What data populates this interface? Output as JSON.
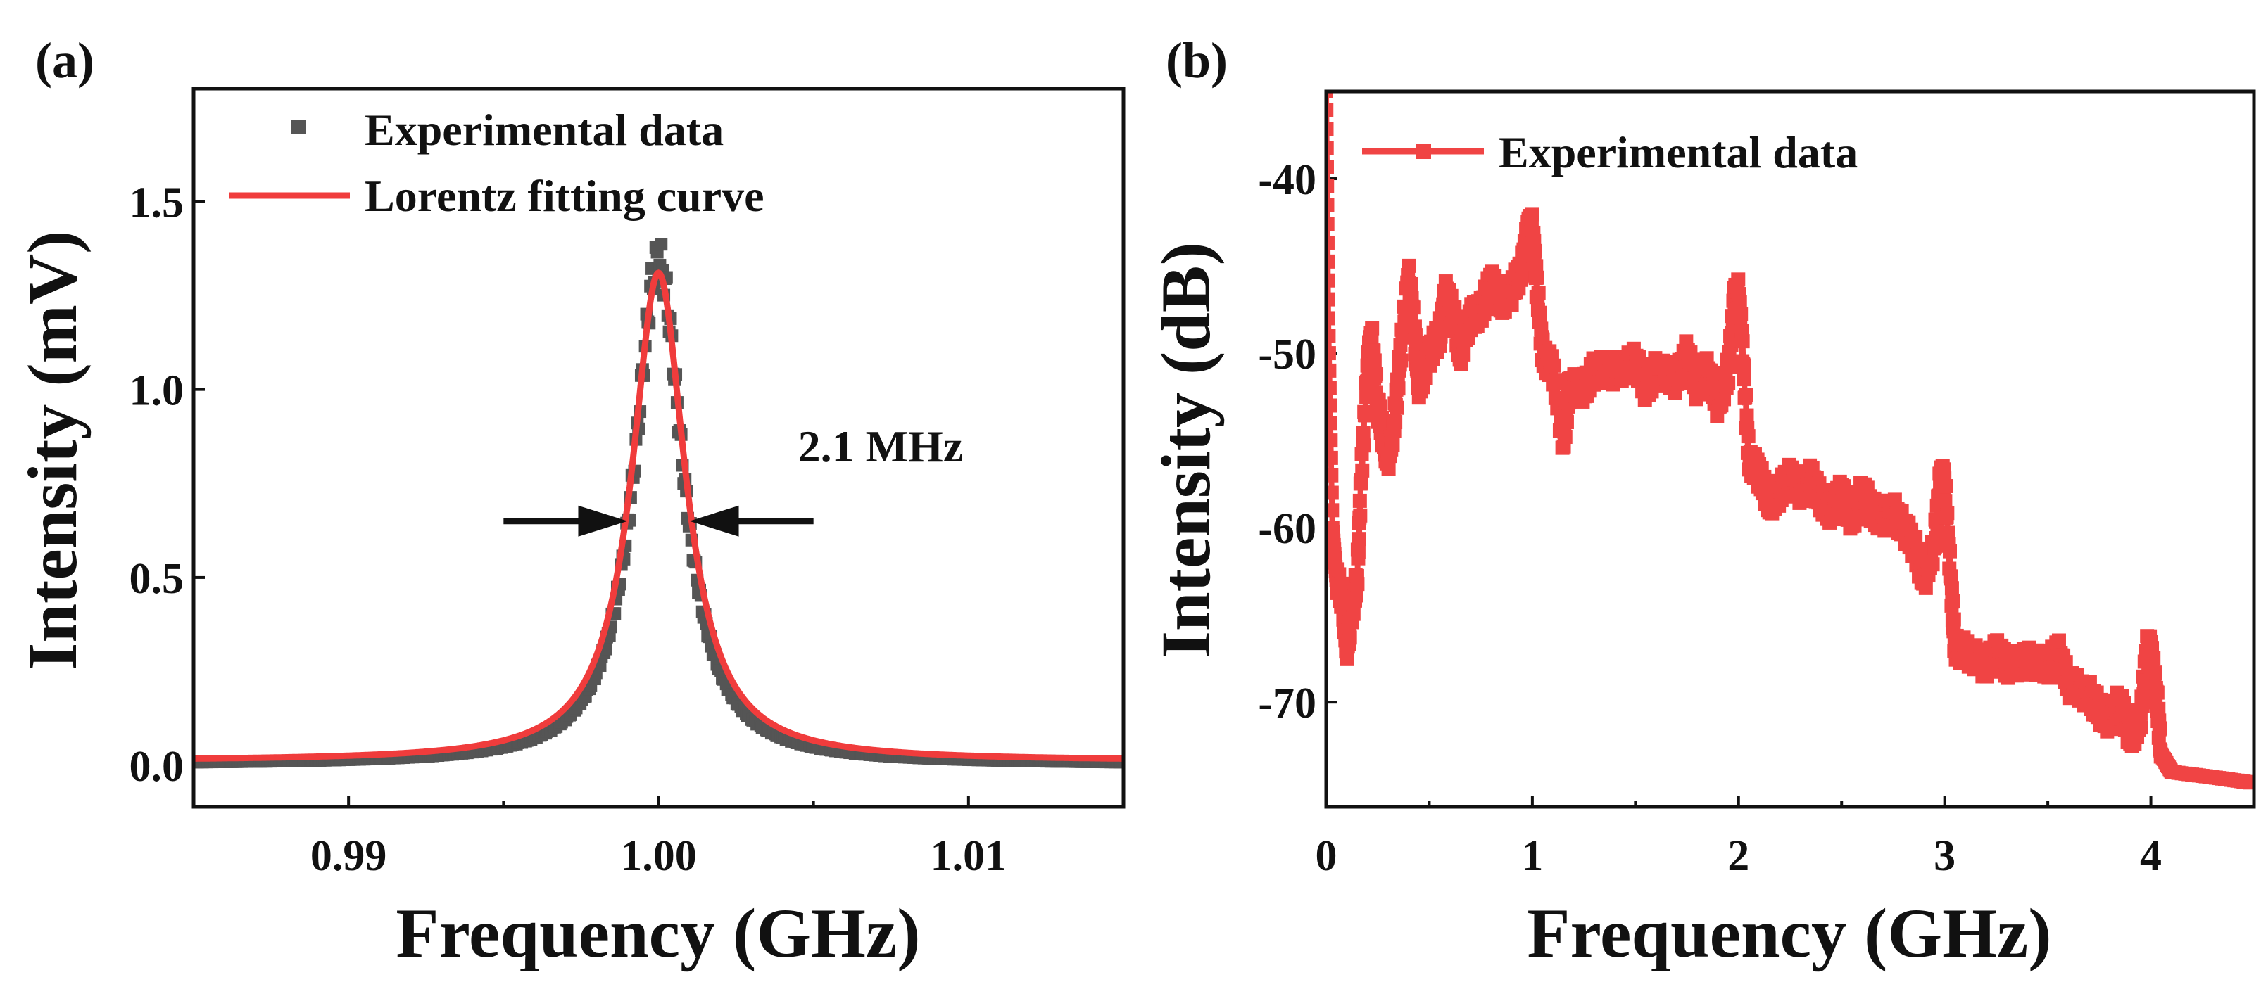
{
  "chart_data": [
    {
      "panel_label": "(a)",
      "type": "scatter",
      "xlabel": "Frequency (GHz)",
      "ylabel": "Intensity (mV)",
      "xlim": [
        0.985,
        1.015
      ],
      "ylim": [
        -0.11,
        1.8
      ],
      "xticks": [
        0.99,
        1.0,
        1.01
      ],
      "xtick_labels": [
        "0.99",
        "1.00",
        "1.01"
      ],
      "yticks": [
        0.0,
        0.5,
        1.0,
        1.5
      ],
      "ytick_labels": [
        "0.0",
        "0.5",
        "1.0",
        "1.5"
      ],
      "grid": false,
      "legend_position": "top-left",
      "series": [
        {
          "name": "Experimental data",
          "kind": "scatter",
          "color": "#555555",
          "center": 1.0,
          "fwhm": 0.0019,
          "peak": 1.34,
          "baseline": 0.0
        },
        {
          "name": "Lorentz fitting curve",
          "kind": "line",
          "color": "#f03c3c",
          "center": 1.0,
          "fwhm": 0.0021,
          "peak": 1.31,
          "baseline": 0.012
        }
      ],
      "annotation": {
        "text": "2.1 MHz",
        "x": 1.0045,
        "y": 0.85,
        "arrow_y": 0.65,
        "left_arrow": [
          0.995,
          0.999
        ],
        "right_arrow": [
          1.005,
          1.001
        ]
      }
    },
    {
      "panel_label": "(b)",
      "type": "line",
      "xlabel": "Frequency (GHz)",
      "ylabel": "Intensity (dB)",
      "xlim": [
        0,
        4.5
      ],
      "ylim": [
        -76,
        -35
      ],
      "xticks": [
        0,
        1,
        2,
        3,
        4
      ],
      "xtick_labels": [
        "0",
        "1",
        "2",
        "3",
        "4"
      ],
      "yticks": [
        -40,
        -50,
        -60,
        -70
      ],
      "ytick_labels": [
        "-40",
        "-50",
        "-60",
        "-70"
      ],
      "grid": false,
      "legend_position": "top-left",
      "series": [
        {
          "name": "Experimental data",
          "color": "#f04444",
          "x": [
            0,
            0.01,
            0.03,
            0.05,
            0.08,
            0.1,
            0.12,
            0.15,
            0.17,
            0.2,
            0.22,
            0.25,
            0.28,
            0.3,
            0.33,
            0.36,
            0.4,
            0.43,
            0.45,
            0.5,
            0.55,
            0.58,
            0.62,
            0.65,
            0.7,
            0.75,
            0.8,
            0.85,
            0.9,
            0.95,
            0.98,
            1.0,
            1.02,
            1.05,
            1.1,
            1.15,
            1.18,
            1.25,
            1.3,
            1.4,
            1.5,
            1.55,
            1.6,
            1.7,
            1.75,
            1.8,
            1.85,
            1.9,
            1.95,
            1.98,
            2.0,
            2.02,
            2.05,
            2.1,
            2.15,
            2.2,
            2.25,
            2.3,
            2.35,
            2.4,
            2.45,
            2.5,
            2.55,
            2.6,
            2.65,
            2.7,
            2.75,
            2.8,
            2.85,
            2.9,
            2.95,
            2.98,
            3.0,
            3.03,
            3.05,
            3.1,
            3.2,
            3.25,
            3.3,
            3.4,
            3.5,
            3.55,
            3.6,
            3.7,
            3.75,
            3.8,
            3.85,
            3.9,
            3.95,
            3.98,
            4.0,
            4.03,
            4.05,
            4.1,
            4.3,
            4.48
          ],
          "y": [
            -35,
            -48,
            -60,
            -63,
            -64,
            -67,
            -65,
            -63,
            -57,
            -51,
            -49,
            -53,
            -55,
            -56,
            -54,
            -50,
            -45.5,
            -49,
            -52,
            -50,
            -49,
            -46.5,
            -48,
            -50,
            -48,
            -47.5,
            -46,
            -47,
            -46.5,
            -45,
            -43,
            -42.8,
            -46,
            -50,
            -51,
            -55,
            -52,
            -52,
            -51,
            -51,
            -50.5,
            -52,
            -51,
            -51.5,
            -50,
            -52,
            -51,
            -53,
            -51,
            -47,
            -46.5,
            -50,
            -56,
            -57,
            -58.5,
            -58,
            -57,
            -58,
            -57,
            -58.5,
            -59,
            -58,
            -59.5,
            -58,
            -59,
            -59.5,
            -59,
            -60,
            -61,
            -63,
            -61,
            -57,
            -57.5,
            -63,
            -67,
            -67,
            -68,
            -67,
            -68,
            -67.5,
            -68,
            -67,
            -69,
            -69.5,
            -70.5,
            -71,
            -70,
            -72,
            -71,
            -67,
            -67,
            -70,
            -73,
            -74,
            -74.3,
            -74.6
          ]
        }
      ]
    }
  ]
}
